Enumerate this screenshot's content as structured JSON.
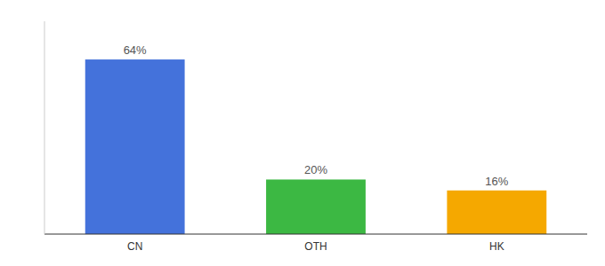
{
  "chart_data": {
    "type": "bar",
    "categories": [
      "CN",
      "OTH",
      "HK"
    ],
    "values": [
      64,
      20,
      16
    ],
    "value_labels": [
      "64%",
      "20%",
      "16%"
    ],
    "colors": [
      "#4472db",
      "#3cb843",
      "#f5a800"
    ],
    "ylim": [
      0,
      78
    ],
    "data_labels": true,
    "tick_labels": "x"
  }
}
